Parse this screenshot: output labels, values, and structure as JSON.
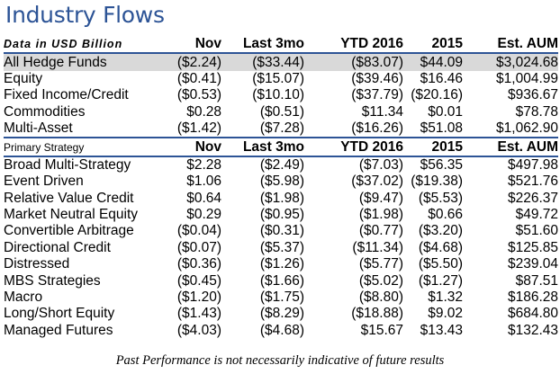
{
  "title": "Industry Flows",
  "header1": {
    "label": "Data in USD Billion",
    "cols": [
      "Nov",
      "Last 3mo",
      "YTD 2016",
      "2015",
      "Est. AUM"
    ]
  },
  "group1": [
    {
      "name": "All Hedge Funds",
      "vals": [
        "($2.24)",
        "($33.44)",
        "($83.07)",
        "$44.09",
        "$3,024.68"
      ],
      "highlight": true
    },
    {
      "name": "Equity",
      "vals": [
        "($0.41)",
        "($15.07)",
        "($39.46)",
        "$16.46",
        "$1,004.99"
      ]
    },
    {
      "name": "Fixed Income/Credit",
      "vals": [
        "($0.53)",
        "($10.10)",
        "($37.79)",
        "($20.16)",
        "$936.67"
      ]
    },
    {
      "name": "Commodities",
      "vals": [
        "$0.28",
        "($0.51)",
        "$11.34",
        "$0.01",
        "$78.78"
      ]
    },
    {
      "name": "Multi-Asset",
      "vals": [
        "($1.42)",
        "($7.28)",
        "($16.26)",
        "$51.08",
        "$1,062.90"
      ]
    }
  ],
  "header2": {
    "label": "Primary Strategy",
    "cols": [
      "Nov",
      "Last 3mo",
      "YTD 2016",
      "2015",
      "Est. AUM"
    ]
  },
  "group2": [
    {
      "name": "Broad Multi-Strategy",
      "vals": [
        "$2.28",
        "($2.49)",
        "($7.03)",
        "$56.35",
        "$497.98"
      ]
    },
    {
      "name": "Event Driven",
      "vals": [
        "$1.06",
        "($5.98)",
        "($37.02)",
        "($19.38)",
        "$521.76"
      ]
    },
    {
      "name": "Relative Value Credit",
      "vals": [
        "$0.64",
        "($1.98)",
        "($9.47)",
        "($5.53)",
        "$226.37"
      ]
    },
    {
      "name": "Market Neutral Equity",
      "vals": [
        "$0.29",
        "($0.95)",
        "($1.98)",
        "$0.66",
        "$49.72"
      ]
    },
    {
      "name": "Convertible Arbitrage",
      "vals": [
        "($0.04)",
        "($0.31)",
        "($0.77)",
        "($3.20)",
        "$51.60"
      ]
    },
    {
      "name": "Directional Credit",
      "vals": [
        "($0.07)",
        "($5.37)",
        "($11.34)",
        "($4.68)",
        "$125.85"
      ]
    },
    {
      "name": "Distressed",
      "vals": [
        "($0.36)",
        "($1.26)",
        "($5.77)",
        "($5.50)",
        "$239.04"
      ]
    },
    {
      "name": "MBS Strategies",
      "vals": [
        "($0.45)",
        "($1.66)",
        "($5.02)",
        "($1.27)",
        "$87.51"
      ]
    },
    {
      "name": "Macro",
      "vals": [
        "($1.20)",
        "($1.75)",
        "($8.80)",
        "$1.32",
        "$186.28"
      ]
    },
    {
      "name": "Long/Short Equity",
      "vals": [
        "($1.43)",
        "($8.29)",
        "($18.88)",
        "$9.02",
        "$684.80"
      ]
    },
    {
      "name": "Managed Futures",
      "vals": [
        "($4.03)",
        "($4.68)",
        "$15.67",
        "$13.43",
        "$132.43"
      ]
    }
  ],
  "footer": "Past Performance is not necessarily indicative of future results"
}
